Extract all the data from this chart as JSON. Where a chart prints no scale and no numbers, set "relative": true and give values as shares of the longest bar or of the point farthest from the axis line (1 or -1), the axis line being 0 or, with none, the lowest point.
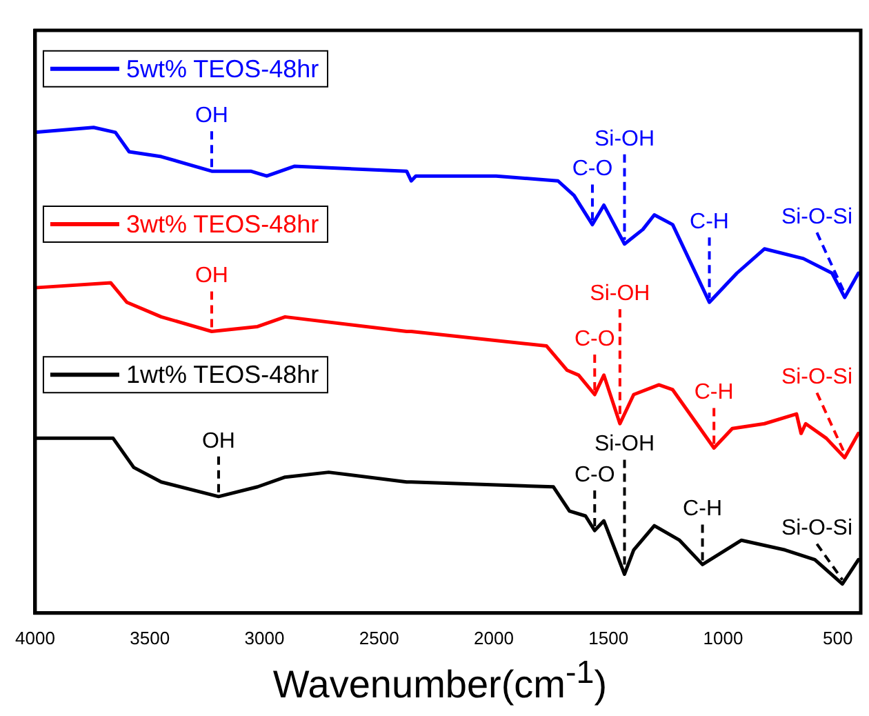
{
  "chart_data": {
    "type": "line",
    "xlabel": "Wavenumber(cm$^{-1}$)",
    "relative": true,
    "legend": "left",
    "marker": "none",
    "line_style": "solid",
    "grid": false,
    "xlim": [
      4000,
      400
    ],
    "xticks": [
      4000,
      3500,
      3000,
      2500,
      2000,
      1500,
      1000,
      500
    ],
    "series": [
      {
        "name": "5wt% TEOS-48hr",
        "color": "#0000ff",
        "x": [
          4000,
          3745,
          3650,
          3590,
          3450,
          3230,
          3060,
          2990,
          2870,
          2380,
          2360,
          2340,
          1990,
          1720,
          1650,
          1570,
          1520,
          1430,
          1350,
          1300,
          1220,
          1060,
          940,
          820,
          650,
          525,
          470,
          410
        ],
        "values": [
          0.99,
          1,
          0.99,
          0.95,
          0.94,
          0.91,
          0.91,
          0.9,
          0.92,
          0.91,
          0.89,
          0.9,
          0.9,
          0.89,
          0.86,
          0.8,
          0.84,
          0.76,
          0.79,
          0.82,
          0.8,
          0.64,
          0.7,
          0.75,
          0.73,
          0.7,
          0.65,
          0.7
        ]
      },
      {
        "name": "3wt% TEOS-48hr",
        "color": "#ff0000",
        "x": [
          4000,
          3670,
          3600,
          3450,
          3230,
          3030,
          2910,
          2380,
          2360,
          1770,
          1680,
          1630,
          1560,
          1520,
          1450,
          1390,
          1280,
          1220,
          1040,
          960,
          820,
          680,
          660,
          640,
          550,
          470,
          410
        ],
        "values": [
          0.67,
          0.68,
          0.64,
          0.61,
          0.58,
          0.59,
          0.61,
          0.58,
          0.58,
          0.55,
          0.5,
          0.49,
          0.45,
          0.49,
          0.39,
          0.45,
          0.47,
          0.46,
          0.34,
          0.38,
          0.39,
          0.41,
          0.37,
          0.39,
          0.36,
          0.32,
          0.37
        ]
      },
      {
        "name": "1wt% TEOS-48hr",
        "color": "#000000",
        "x": [
          4000,
          3660,
          3570,
          3450,
          3200,
          3030,
          2910,
          2720,
          2380,
          2360,
          1740,
          1670,
          1600,
          1560,
          1520,
          1430,
          1390,
          1300,
          1190,
          1090,
          920,
          730,
          600,
          480,
          410
        ],
        "values": [
          0.36,
          0.36,
          0.3,
          0.27,
          0.24,
          0.26,
          0.28,
          0.29,
          0.27,
          0.27,
          0.26,
          0.21,
          0.2,
          0.17,
          0.19,
          0.08,
          0.13,
          0.18,
          0.15,
          0.1,
          0.15,
          0.13,
          0.11,
          0.06,
          0.11
        ]
      }
    ],
    "annotations": [
      {
        "text": "OH",
        "x": 3230,
        "y": 0.91
      },
      {
        "text": "C-O",
        "x": 1570,
        "y": 0.8
      },
      {
        "text": "Si-OH",
        "x": 1430,
        "y": 0.76
      },
      {
        "text": "C-H",
        "x": 1060,
        "y": 0.64
      },
      {
        "text": "Si-O-Si",
        "x": 470,
        "y": 0.65
      },
      {
        "text": "OH",
        "x": 3230,
        "y": 0.58
      },
      {
        "text": "C-O",
        "x": 1560,
        "y": 0.45
      },
      {
        "text": "Si-OH",
        "x": 1450,
        "y": 0.39
      },
      {
        "text": "C-H",
        "x": 1040,
        "y": 0.34
      },
      {
        "text": "Si-O-Si",
        "x": 470,
        "y": 0.32
      },
      {
        "text": "OH",
        "x": 3200,
        "y": 0.24
      },
      {
        "text": "C-O",
        "x": 1560,
        "y": 0.17
      },
      {
        "text": "Si-OH",
        "x": 1430,
        "y": 0.08
      },
      {
        "text": "C-H",
        "x": 1090,
        "y": 0.1
      },
      {
        "text": "Si-O-Si",
        "x": 480,
        "y": 0.06
      }
    ]
  }
}
